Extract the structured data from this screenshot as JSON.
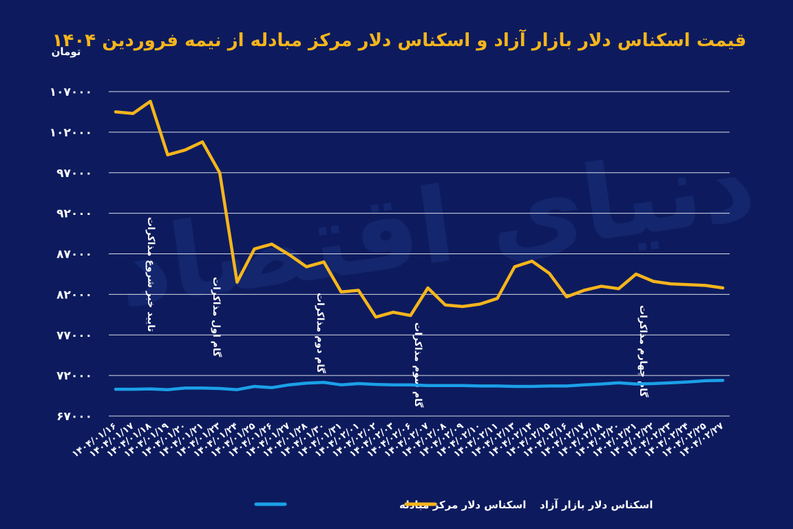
{
  "chart_data": {
    "type": "line",
    "title": "قیمت اسکناس دلار بازار آزاد و اسکناس دلار مرکز مبادله از نیمه فروردین ۱۴۰۴",
    "ylabel": "تومان",
    "xlabel": "",
    "ylim": [
      67000,
      107000
    ],
    "yticks": [
      "۱۰۷۰۰۰",
      "۱۰۲۰۰۰",
      "۹۷۰۰۰",
      "۹۲۰۰۰",
      "۸۷۰۰۰",
      "۸۲۰۰۰",
      "۷۷۰۰۰",
      "۷۲۰۰۰",
      "۶۷۰۰۰"
    ],
    "ytick_values": [
      107000,
      102000,
      97000,
      92000,
      87000,
      82000,
      77000,
      72000,
      67000
    ],
    "grid": true,
    "categories": [
      "۱۴۰۴/۰۱/۱۶",
      "۱۴۰۴/۰۱/۱۷",
      "۱۴۰۴/۰۱/۱۸",
      "۱۴۰۴/۰۱/۱۹",
      "۱۴۰۴/۰۱/۲۰",
      "۱۴۰۴/۰۱/۲۱",
      "۱۴۰۴/۰۱/۲۳",
      "۱۴۰۴/۰۱/۲۴",
      "۱۴۰۴/۰۱/۲۵",
      "۱۴۰۴/۰۱/۲۶",
      "۱۴۰۴/۰۱/۲۷",
      "۱۴۰۴/۰۱/۲۸",
      "۱۴۰۴/۰۱/۳۰",
      "۱۴۰۴/۰۱/۳۱",
      "۱۴۰۴/۰۲/۰۱",
      "۱۴۰۴/۰۲/۰۲",
      "۱۴۰۴/۰۲/۰۳",
      "۱۴۰۴/۰۲/۰۶",
      "۱۴۰۴/۰۲/۰۷",
      "۱۴۰۴/۰۲/۰۸",
      "۱۴۰۴/۰۲/۰۹",
      "۱۴۰۴/۰۲/۱۰",
      "۱۴۰۴/۰۲/۱۱",
      "۱۴۰۴/۰۲/۱۳",
      "۱۴۰۴/۰۲/۱۴",
      "۱۴۰۴/۰۲/۱۵",
      "۱۴۰۴/۰۲/۱۶",
      "۱۴۰۴/۰۲/۱۷",
      "۱۴۰۴/۰۲/۱۸",
      "۱۴۰۴/۰۲/۲۰",
      "۱۴۰۴/۰۲/۲۱",
      "۱۴۰۴/۰۲/۲۲",
      "۱۴۰۴/۰۲/۲۳",
      "۱۴۰۴/۰۲/۲۴",
      "۱۴۰۴/۰۲/۲۵",
      "۱۴۰۴/۰۲/۲۷"
    ],
    "series": [
      {
        "name": "اسکناس دلار بازار آزاد",
        "color": "#f5b51c",
        "values": [
          104500,
          104300,
          105800,
          99200,
          99800,
          100800,
          97000,
          83500,
          87600,
          88200,
          86900,
          85400,
          86000,
          82300,
          82500,
          79200,
          79800,
          79400,
          82800,
          80700,
          80500,
          80800,
          81500,
          85400,
          86100,
          84600,
          81700,
          82500,
          83000,
          82700,
          84500,
          83600,
          83300,
          83200,
          83100,
          82800
        ]
      },
      {
        "name": "اسکناس دلار مرکز مبادله",
        "color": "#1ba0e8",
        "values": [
          70300,
          70300,
          70350,
          70250,
          70450,
          70450,
          70400,
          70250,
          70650,
          70500,
          70850,
          71050,
          71150,
          70850,
          71000,
          70900,
          70850,
          70850,
          70750,
          70750,
          70750,
          70700,
          70700,
          70650,
          70650,
          70700,
          70700,
          70850,
          70950,
          71100,
          70950,
          71000,
          71100,
          71200,
          71350,
          71400
        ]
      }
    ],
    "annotations": [
      {
        "text": "تایید خبر شروع مذاکرات",
        "category": "۱۴۰۴/۰۱/۱۸"
      },
      {
        "text": "گام اول مذاکرات",
        "category": "۱۴۰۴/۰۱/۲۴"
      },
      {
        "text": "گام دوم مذاکرات",
        "category": "۱۴۰۴/۰۱/۳۰"
      },
      {
        "text": "گام سوم مذاکرات",
        "category": "۱۴۰۴/۰۲/۰۶"
      },
      {
        "text": "گام چهارم مذاکرات",
        "category": "۱۴۰۴/۰۲/۲۱"
      }
    ],
    "legend": [
      {
        "label": "اسکناس دلار مرکز مبادله",
        "color": "#1ba0e8"
      },
      {
        "label": "اسکناس دلار بازار آزاد",
        "color": "#f5b51c"
      }
    ],
    "legend_position": "bottom-center"
  },
  "colors": {
    "background": "#0d1b5e",
    "title": "#f5b51c",
    "grid": "#ffffff",
    "text": "#ffffff"
  },
  "watermark": "دنیای اقتصاد"
}
